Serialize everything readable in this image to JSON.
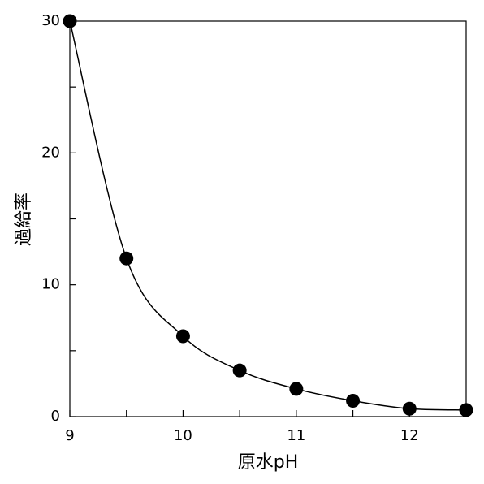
{
  "chart_data": {
    "type": "line",
    "x_label": "原水pH",
    "y_label": "過給率",
    "x": [
      9,
      9.5,
      10,
      10.5,
      11,
      11.5,
      12,
      12.5
    ],
    "series": [
      {
        "color": "#000000",
        "values": [
          30,
          12,
          6.1,
          3.5,
          2.1,
          1.2,
          0.6,
          0.5
        ]
      }
    ],
    "xlim": [
      9,
      12.5
    ],
    "xticks": [
      9,
      10,
      11,
      12
    ],
    "xminorticks": [
      9.5,
      10.5,
      11.5
    ],
    "ylim": [
      0,
      30
    ],
    "yticks": [
      0,
      10,
      20,
      30
    ],
    "yminorticks": [
      5,
      15,
      25
    ],
    "smooth": true,
    "markers": true,
    "grid": false
  }
}
